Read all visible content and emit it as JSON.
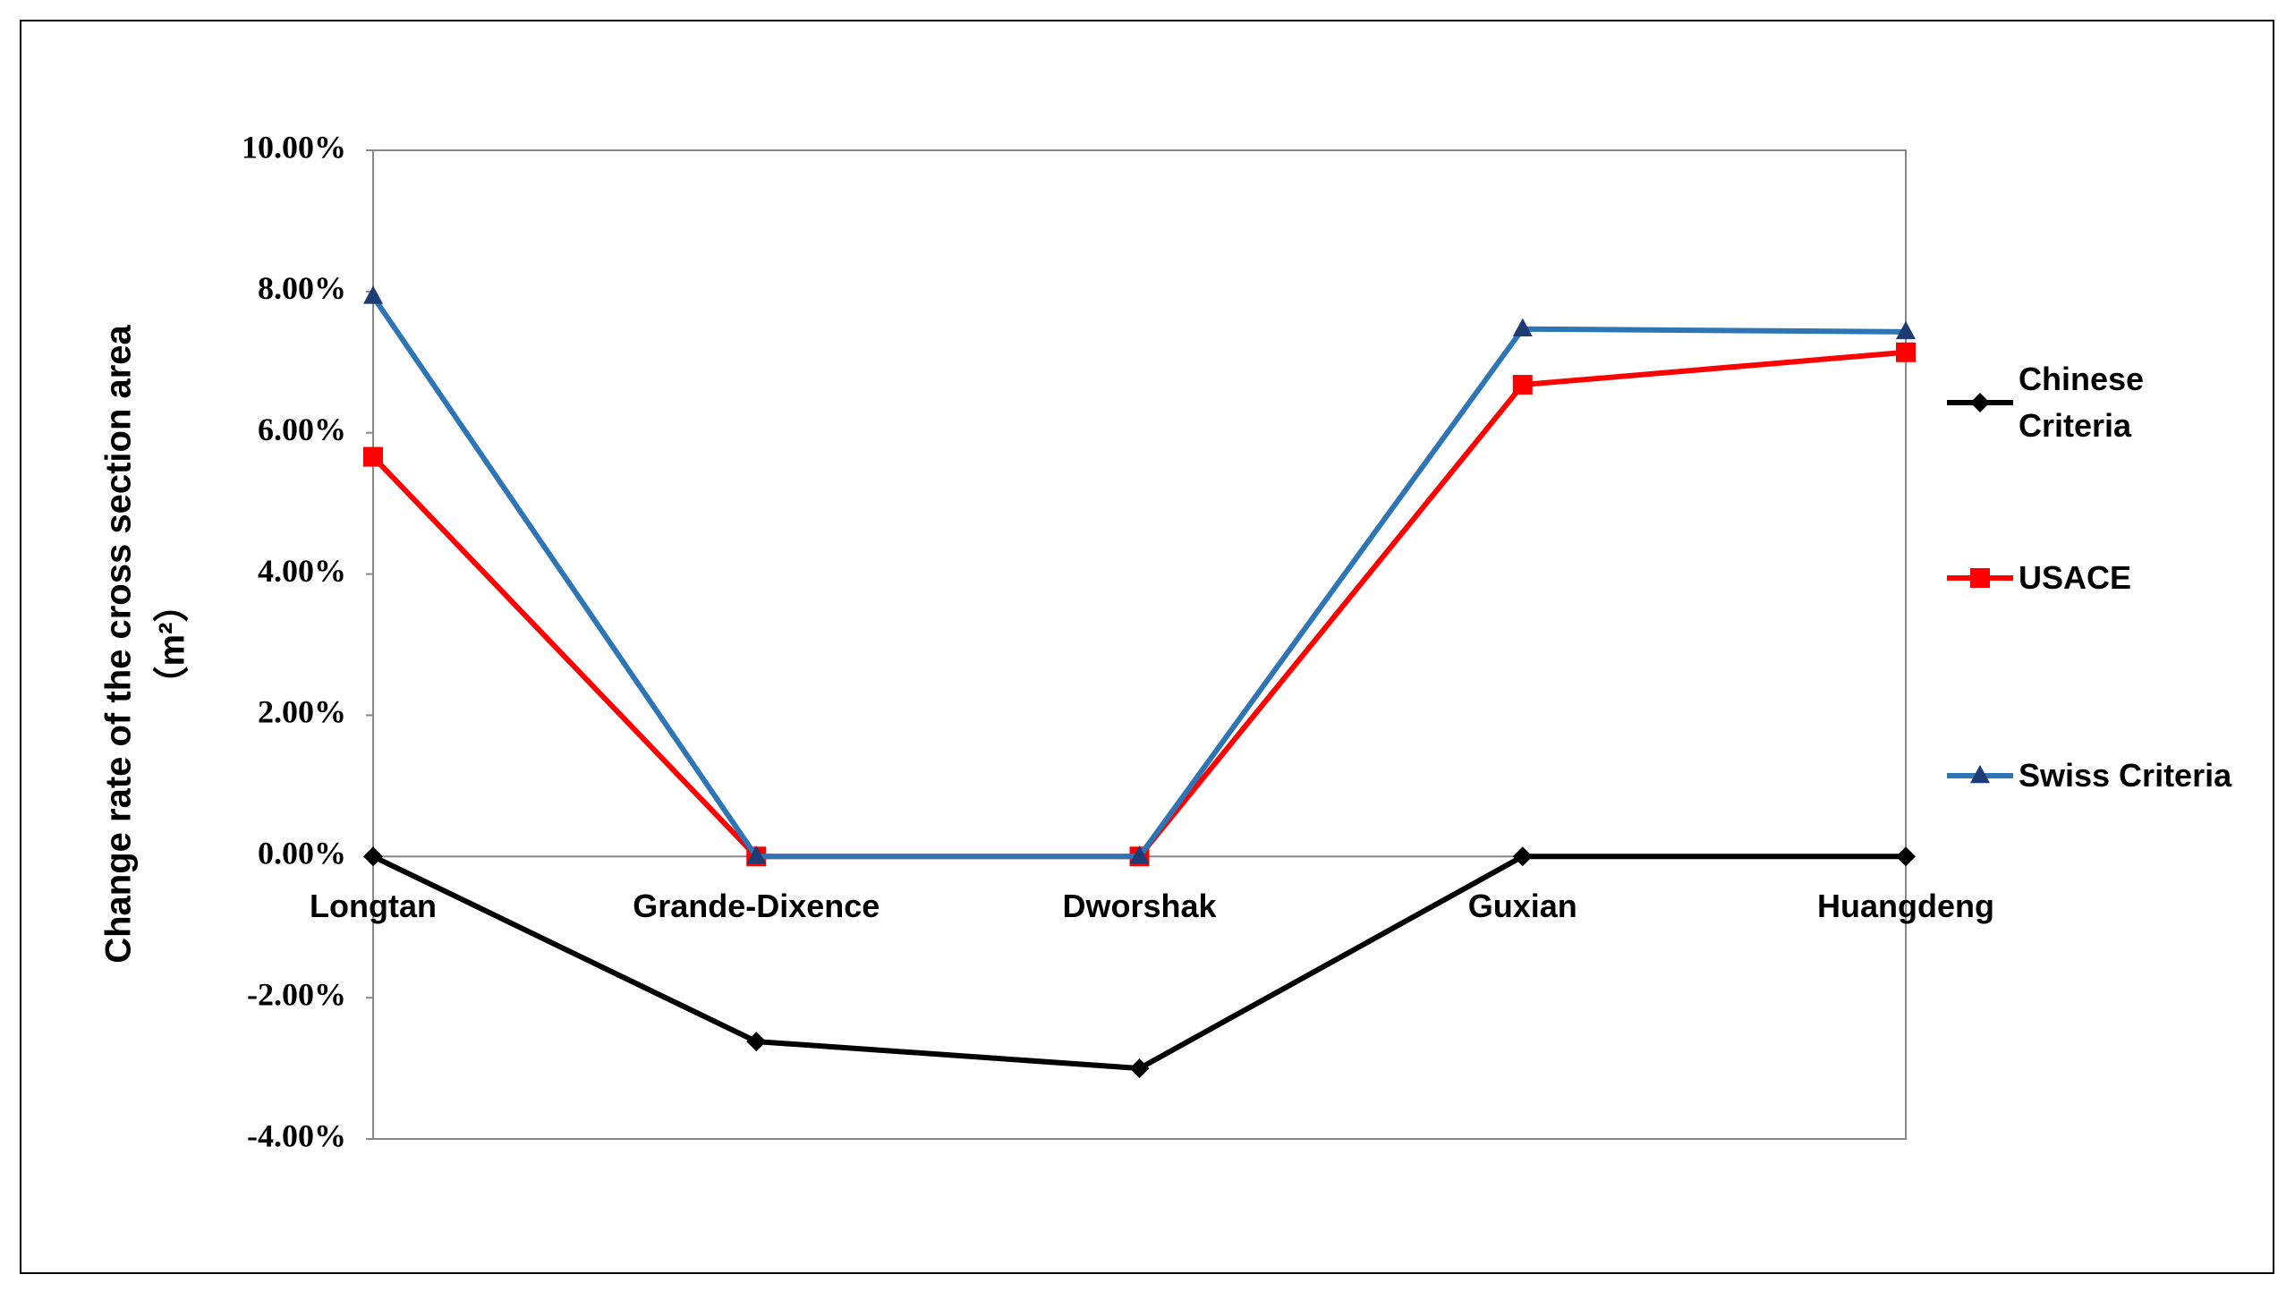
{
  "chart_data": {
    "type": "line",
    "y_label": "Change rate of the cross section area",
    "y_unit": "（m²）",
    "categories": [
      "Longtan",
      "Grande-Dixence",
      "Dworshak",
      "Guxian",
      "Huangdeng"
    ],
    "series": [
      {
        "name": "Chinese Criteria",
        "color": "#000000",
        "marker": "diamond",
        "marker_color": "#000000",
        "values": [
          0,
          -2.62,
          -3.0,
          0,
          0
        ]
      },
      {
        "name": "USACE",
        "color": "#ff0000",
        "marker": "square",
        "marker_color": "#ff0000",
        "values": [
          5.66,
          0,
          0,
          6.68,
          7.14
        ]
      },
      {
        "name": "Swiss Criteria",
        "color": "#2e75b6",
        "marker": "triangle",
        "marker_color": "#1f3b73",
        "values": [
          7.93,
          0,
          0,
          7.47,
          7.43
        ]
      }
    ],
    "ylim": [
      -4,
      10
    ],
    "yticks": [
      {
        "value": -4,
        "label": "-4.00%"
      },
      {
        "value": -2,
        "label": "-2.00%"
      },
      {
        "value": 0,
        "label": "0.00%"
      },
      {
        "value": 2,
        "label": "2.00%"
      },
      {
        "value": 4,
        "label": "4.00%"
      },
      {
        "value": 6,
        "label": "6.00%"
      },
      {
        "value": 8,
        "label": "8.00%"
      },
      {
        "value": 10,
        "label": "10.00%"
      }
    ],
    "grid": false,
    "legend": "right"
  }
}
